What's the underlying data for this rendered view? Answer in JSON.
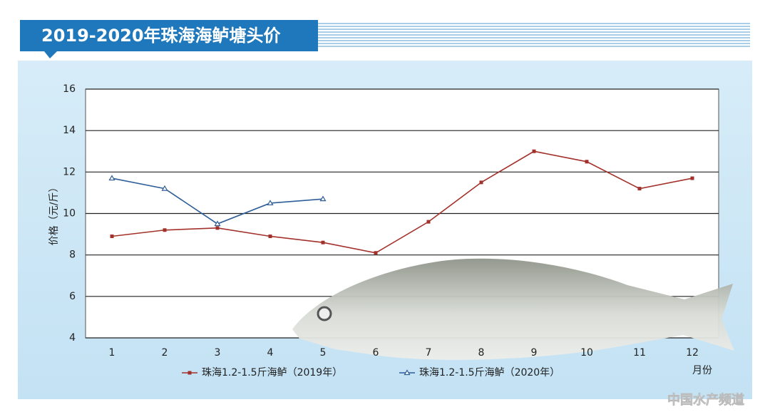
{
  "chart_data": {
    "type": "line",
    "title": "2019-2020年珠海海鲈塘头价",
    "ylabel": "价格（元/斤）",
    "xlabel": "月份",
    "watermark": "中国水产频道",
    "categories": [
      "1",
      "2",
      "3",
      "4",
      "5",
      "6",
      "7",
      "8",
      "9",
      "10",
      "11",
      "12"
    ],
    "series": [
      {
        "name": "珠海1.2-1.5斤海鲈（2019年）",
        "color": "#a3312b",
        "marker": "square",
        "values": [
          8.9,
          9.2,
          9.3,
          8.9,
          8.6,
          8.1,
          9.6,
          11.5,
          13.0,
          12.5,
          11.2,
          11.7
        ]
      },
      {
        "name": "珠海1.2-1.5斤海鲈（2020年）",
        "color": "#2f5d98",
        "marker": "triangle",
        "values": [
          11.7,
          11.2,
          9.5,
          10.5,
          10.7,
          null,
          null,
          null,
          null,
          null,
          null,
          null
        ]
      }
    ],
    "ylim": [
      4,
      16
    ],
    "yticks": [
      4,
      6,
      8,
      10,
      12,
      14,
      16
    ],
    "grid": true
  }
}
